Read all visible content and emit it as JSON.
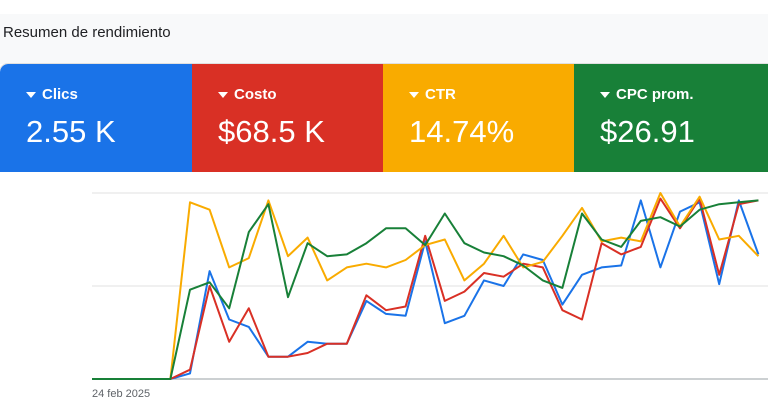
{
  "header": {
    "title": "Resumen de rendimiento"
  },
  "metrics": [
    {
      "label": "Clics",
      "value": "2.55 K",
      "color": "#1a73e8"
    },
    {
      "label": "Costo",
      "value": "$68.5 K",
      "color": "#d93025"
    },
    {
      "label": "CTR",
      "value": "14.74%",
      "color": "#f9ab00"
    },
    {
      "label": "CPC prom.",
      "value": "$26.91",
      "color": "#188038"
    }
  ],
  "chart_data": {
    "type": "line",
    "x_labels": [
      "24 feb 2025"
    ],
    "grid": true,
    "ylim": [
      0,
      1
    ],
    "series": [
      {
        "color": "#1a73e8",
        "values": [
          0,
          0,
          0,
          0,
          0,
          0.03,
          0.58,
          0.32,
          0.28,
          0.12,
          0.12,
          0.2,
          0.19,
          0.19,
          0.42,
          0.35,
          0.34,
          0.74,
          0.3,
          0.34,
          0.53,
          0.5,
          0.67,
          0.64,
          0.4,
          0.56,
          0.6,
          0.61,
          0.96,
          0.6,
          0.9,
          0.95,
          0.51,
          0.96,
          0.67
        ]
      },
      {
        "color": "#d93025",
        "values": [
          0,
          0,
          0,
          0,
          0,
          0.05,
          0.5,
          0.2,
          0.38,
          0.12,
          0.12,
          0.14,
          0.19,
          0.19,
          0.45,
          0.37,
          0.39,
          0.77,
          0.42,
          0.47,
          0.57,
          0.55,
          0.62,
          0.6,
          0.37,
          0.32,
          0.73,
          0.67,
          0.71,
          0.97,
          0.81,
          0.97,
          0.56,
          0.94,
          0.96
        ]
      },
      {
        "color": "#f9ab00",
        "values": [
          0,
          0,
          0,
          0,
          0,
          0.95,
          0.91,
          0.6,
          0.65,
          0.96,
          0.66,
          0.76,
          0.53,
          0.6,
          0.62,
          0.6,
          0.64,
          0.72,
          0.75,
          0.53,
          0.62,
          0.77,
          0.6,
          0.63,
          0.77,
          0.92,
          0.74,
          0.76,
          0.74,
          1.0,
          0.82,
          0.98,
          0.75,
          0.77,
          0.66
        ]
      },
      {
        "color": "#188038",
        "values": [
          0,
          0,
          0,
          0,
          0,
          0.48,
          0.52,
          0.38,
          0.79,
          0.94,
          0.44,
          0.73,
          0.66,
          0.67,
          0.73,
          0.81,
          0.81,
          0.72,
          0.89,
          0.73,
          0.68,
          0.66,
          0.61,
          0.53,
          0.49,
          0.89,
          0.75,
          0.71,
          0.85,
          0.87,
          0.82,
          0.91,
          0.94,
          0.95,
          0.96
        ]
      }
    ]
  }
}
